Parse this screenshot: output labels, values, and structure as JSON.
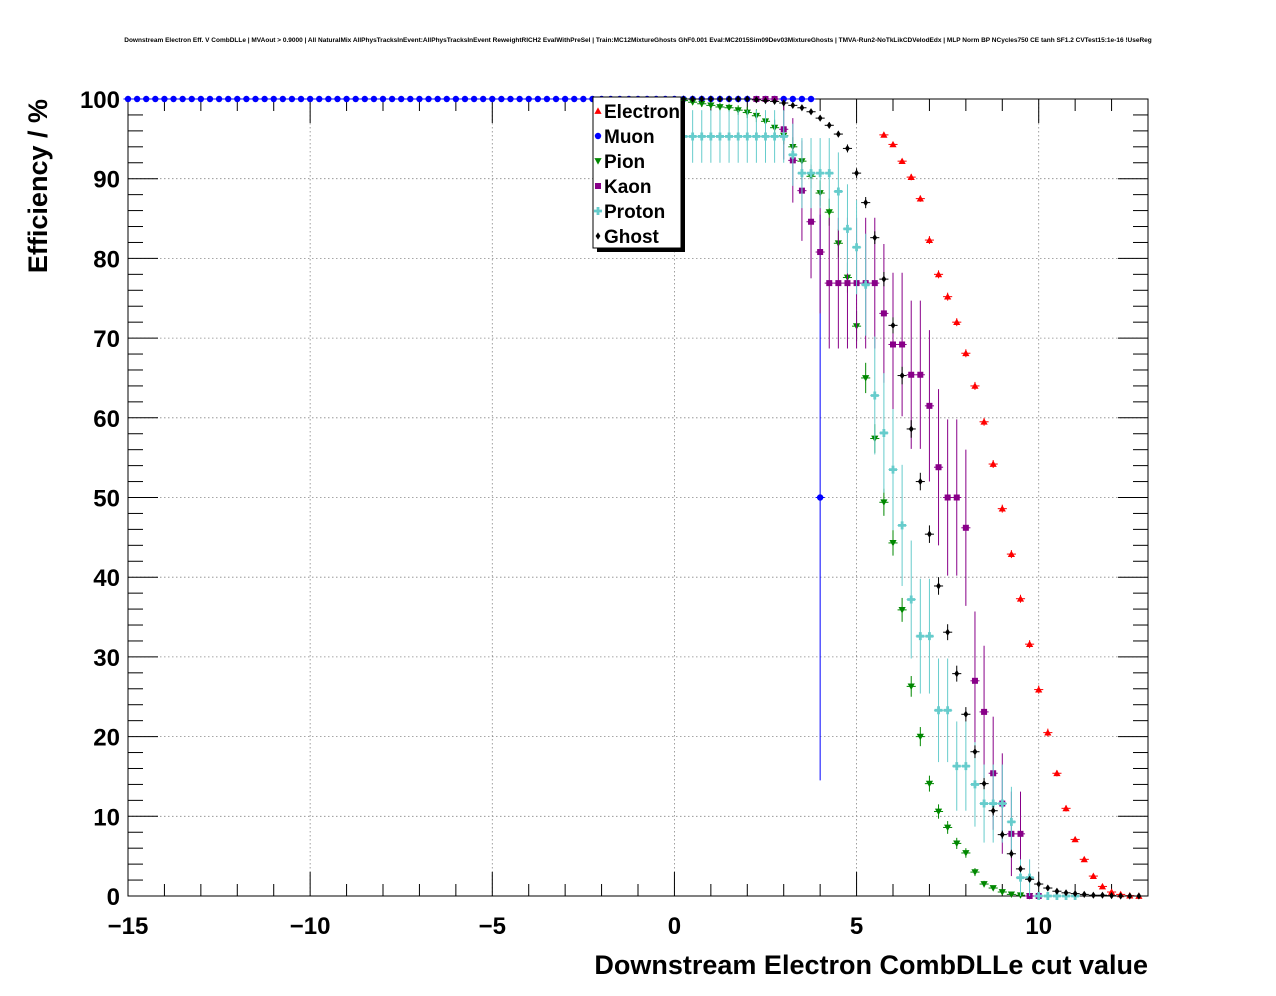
{
  "chart_data": {
    "type": "scatter",
    "title": "Downstream Electron Eff. V CombDLLe | MVAout > 0.9000 | All NaturalMix AllPhysTracksInEvent:AllPhysTracksInEvent ReweightRICH2 EvalWithPreSel | Train:MC12MixtureGhosts GhF0.001 Eval:MC2015Sim09Dev03MixtureGhosts | TMVA-Run2-NoTkLikCDVelodEdx | MLP Norm BP NCycles750 CE tanh SF1.2 CVTest15:1e-16 !UseReg",
    "xlabel": "Downstream Electron CombDLLe cut value",
    "ylabel": "Efficiency / %",
    "xlim": [
      -15,
      13
    ],
    "ylim": [
      0,
      100
    ],
    "xticks": [
      -15,
      -10,
      -5,
      0,
      5,
      10
    ],
    "xtick_labels": [
      "−15",
      "−10",
      "−5",
      "0",
      "5",
      "10"
    ],
    "yticks": [
      0,
      10,
      20,
      30,
      40,
      50,
      60,
      70,
      80,
      90,
      100
    ],
    "yticks_labels": [
      "0",
      "10",
      "20",
      "30",
      "40",
      "50",
      "60",
      "70",
      "80",
      "90",
      "100"
    ],
    "grid": true,
    "legend_position": "top-center",
    "series": [
      {
        "name": "Electron",
        "color": "#ff0000",
        "marker": "triangle-up",
        "x": [
          5.75,
          6.0,
          6.25,
          6.5,
          6.75,
          7.0,
          7.25,
          7.5,
          7.75,
          8.0,
          8.25,
          8.5,
          8.75,
          9.0,
          9.25,
          9.5,
          9.75,
          10.0,
          10.25,
          10.5,
          10.75,
          11.0,
          11.25,
          11.5,
          11.75,
          12.0,
          12.25,
          12.5,
          12.75
        ],
        "y": [
          95.5,
          94.3,
          92.2,
          90.2,
          87.5,
          82.3,
          78.0,
          75.2,
          72.0,
          68.1,
          64.0,
          59.5,
          54.2,
          48.6,
          42.9,
          37.3,
          31.6,
          25.9,
          20.5,
          15.4,
          11.0,
          7.1,
          4.6,
          2.5,
          1.2,
          0.5,
          0.2,
          0.05,
          0.0
        ],
        "err": [
          0.3,
          0.3,
          0.3,
          0.4,
          0.4,
          0.5,
          0.5,
          0.5,
          0.5,
          0.5,
          0.5,
          0.5,
          0.5,
          0.5,
          0.5,
          0.5,
          0.5,
          0.5,
          0.5,
          0.4,
          0.4,
          0.3,
          0.3,
          0.2,
          0.2,
          0.1,
          0.1,
          0.05,
          0.0
        ]
      },
      {
        "name": "Muon",
        "color": "#0000ff",
        "marker": "circle",
        "x": [
          -15.0,
          -14.75,
          -14.5,
          -14.25,
          -14.0,
          -13.75,
          -13.5,
          -13.25,
          -13.0,
          -12.75,
          -12.5,
          -12.25,
          -12.0,
          -11.75,
          -11.5,
          -11.25,
          -11.0,
          -10.75,
          -10.5,
          -10.25,
          -10.0,
          -9.75,
          -9.5,
          -9.25,
          -9.0,
          -8.75,
          -8.5,
          -8.25,
          -8.0,
          -7.75,
          -7.5,
          -7.25,
          -7.0,
          -6.75,
          -6.5,
          -6.25,
          -6.0,
          -5.75,
          -5.5,
          -5.25,
          -5.0,
          -4.75,
          -4.5,
          -4.25,
          -4.0,
          -3.75,
          -3.5,
          -3.25,
          -3.0,
          -2.75,
          -2.5,
          -2.25,
          -2.0,
          -1.75,
          -1.5,
          -1.25,
          -1.0,
          -0.75,
          -0.5,
          -0.25,
          0.0,
          0.25,
          0.5,
          0.75,
          1.0,
          1.25,
          1.5,
          1.75,
          2.0,
          2.25,
          2.5,
          2.75,
          3.0,
          3.25,
          3.5,
          3.75,
          4.0
        ],
        "y": [
          100,
          100,
          100,
          100,
          100,
          100,
          100,
          100,
          100,
          100,
          100,
          100,
          100,
          100,
          100,
          100,
          100,
          100,
          100,
          100,
          100,
          100,
          100,
          100,
          100,
          100,
          100,
          100,
          100,
          100,
          100,
          100,
          100,
          100,
          100,
          100,
          100,
          100,
          100,
          100,
          100,
          100,
          100,
          100,
          100,
          100,
          100,
          100,
          100,
          100,
          100,
          100,
          100,
          100,
          100,
          100,
          100,
          100,
          100,
          100,
          100,
          100,
          100,
          100,
          100,
          100,
          100,
          100,
          100,
          100,
          100,
          100,
          100,
          100,
          100,
          100,
          50
        ],
        "err": [
          0,
          0,
          0,
          0,
          0,
          0,
          0,
          0,
          0,
          0,
          0,
          0,
          0,
          0,
          0,
          0,
          0,
          0,
          0,
          0,
          0,
          0,
          0,
          0,
          0,
          0,
          0,
          0,
          0,
          0,
          0,
          0,
          0,
          0,
          0,
          0,
          0,
          0,
          0,
          0,
          0,
          0,
          0,
          0,
          0,
          0,
          0,
          0,
          0,
          0,
          0,
          0,
          0,
          0,
          0,
          0,
          0,
          0,
          0,
          0,
          0,
          0,
          0,
          0,
          0,
          0,
          0,
          0,
          0,
          0,
          0,
          0,
          0,
          0,
          0,
          0,
          35.5
        ]
      },
      {
        "name": "Pion",
        "color": "#008800",
        "marker": "triangle-down",
        "x": [
          0.25,
          0.5,
          0.75,
          1.0,
          1.25,
          1.5,
          1.75,
          2.0,
          2.25,
          2.5,
          2.75,
          3.0,
          3.25,
          3.5,
          3.75,
          4.0,
          4.25,
          4.5,
          4.75,
          5.0,
          5.25,
          5.5,
          5.75,
          6.0,
          6.25,
          6.5,
          6.75,
          7.0,
          7.25,
          7.5,
          7.75,
          8.0,
          8.25,
          8.5,
          8.75,
          9.0,
          9.25,
          9.5,
          9.75
        ],
        "y": [
          99.8,
          99.6,
          99.4,
          99.2,
          99.0,
          98.9,
          98.6,
          98.3,
          97.9,
          97.2,
          96.4,
          95.4,
          94.0,
          92.2,
          90.3,
          88.2,
          85.8,
          81.9,
          77.6,
          71.5,
          65.0,
          57.4,
          49.4,
          44.3,
          35.9,
          26.3,
          20.0,
          14.1,
          10.6,
          8.6,
          6.6,
          5.4,
          3.0,
          1.5,
          1.0,
          0.5,
          0.2,
          0.1,
          0.0
        ],
        "err": [
          0.2,
          0.3,
          0.4,
          0.4,
          0.5,
          0.5,
          0.6,
          0.7,
          0.8,
          0.9,
          1.0,
          1.1,
          1.2,
          1.4,
          1.5,
          1.6,
          1.7,
          1.8,
          1.9,
          1.9,
          1.9,
          1.8,
          1.7,
          1.6,
          1.5,
          1.3,
          1.2,
          1.0,
          0.9,
          0.8,
          0.7,
          0.6,
          0.5,
          0.4,
          0.3,
          0.3,
          0.2,
          0.1,
          0.0
        ]
      },
      {
        "name": "Kaon",
        "color": "#880088",
        "marker": "square",
        "x": [
          2.25,
          2.5,
          2.75,
          3.0,
          3.25,
          3.5,
          3.75,
          4.0,
          4.25,
          4.5,
          4.75,
          5.0,
          5.25,
          5.5,
          5.75,
          6.0,
          6.25,
          6.5,
          6.75,
          7.0,
          7.25,
          7.5,
          7.75,
          8.0,
          8.25,
          8.5,
          8.75,
          9.0,
          9.25,
          9.5,
          9.75,
          10.0
        ],
        "y": [
          100,
          100,
          100,
          96.2,
          92.3,
          88.5,
          84.6,
          80.8,
          76.9,
          76.9,
          76.9,
          76.9,
          76.9,
          76.9,
          73.1,
          69.2,
          69.2,
          65.4,
          65.4,
          61.5,
          53.8,
          50.0,
          50.0,
          46.2,
          27.0,
          23.1,
          15.4,
          11.6,
          7.8,
          7.8,
          0.0,
          0.0
        ],
        "err": [
          0,
          0,
          0,
          3.8,
          5.3,
          6.3,
          7.1,
          7.7,
          8.2,
          8.2,
          8.2,
          8.2,
          8.2,
          8.2,
          8.7,
          9.0,
          9.0,
          9.3,
          9.3,
          9.5,
          9.8,
          9.8,
          9.8,
          9.8,
          8.7,
          8.3,
          7.1,
          6.3,
          5.3,
          5.3,
          0,
          0
        ]
      },
      {
        "name": "Proton",
        "color": "#66cccc",
        "marker": "cross",
        "x": [
          0.25,
          0.5,
          0.75,
          1.0,
          1.25,
          1.5,
          1.75,
          2.0,
          2.25,
          2.5,
          2.75,
          3.0,
          3.25,
          3.5,
          3.75,
          4.0,
          4.25,
          4.5,
          4.75,
          5.0,
          5.25,
          5.5,
          5.75,
          6.0,
          6.25,
          6.5,
          6.75,
          7.0,
          7.25,
          7.5,
          7.75,
          8.0,
          8.25,
          8.5,
          8.75,
          9.0,
          9.25,
          9.5,
          9.75,
          10.0,
          10.25,
          10.5,
          10.75,
          11.0
        ],
        "y": [
          95.3,
          95.3,
          95.3,
          95.3,
          95.3,
          95.3,
          95.3,
          95.3,
          95.3,
          95.3,
          95.3,
          95.3,
          93.0,
          90.7,
          90.7,
          90.7,
          90.7,
          88.4,
          83.7,
          81.4,
          76.7,
          62.8,
          58.1,
          53.5,
          46.5,
          37.2,
          32.6,
          32.6,
          23.3,
          23.3,
          16.3,
          16.3,
          14.0,
          11.6,
          11.6,
          11.6,
          9.3,
          2.3,
          2.3,
          0.0,
          0.0,
          0.0,
          0.0,
          0.0
        ],
        "err": [
          3.3,
          3.3,
          3.3,
          3.3,
          3.3,
          3.3,
          3.3,
          3.3,
          3.3,
          3.3,
          3.3,
          3.3,
          3.9,
          4.4,
          4.4,
          4.4,
          4.4,
          4.9,
          5.6,
          5.9,
          6.4,
          7.4,
          7.5,
          7.6,
          7.6,
          7.4,
          7.2,
          7.2,
          6.5,
          6.5,
          5.6,
          5.6,
          5.3,
          4.9,
          4.9,
          4.9,
          4.4,
          2.3,
          2.3,
          0,
          0,
          0,
          0,
          0
        ]
      },
      {
        "name": "Ghost",
        "color": "#000000",
        "marker": "diamond",
        "x": [
          0.25,
          0.5,
          0.75,
          1.0,
          1.25,
          1.5,
          1.75,
          2.0,
          2.25,
          2.5,
          2.75,
          3.0,
          3.25,
          3.5,
          3.75,
          4.0,
          4.25,
          4.5,
          4.75,
          5.0,
          5.25,
          5.5,
          5.75,
          6.0,
          6.25,
          6.5,
          6.75,
          7.0,
          7.25,
          7.5,
          7.75,
          8.0,
          8.25,
          8.5,
          8.75,
          9.0,
          9.25,
          9.5,
          9.75,
          10.0,
          10.25,
          10.5,
          10.75,
          11.0,
          11.25,
          11.5,
          11.75,
          12.0,
          12.25,
          12.5,
          12.75
        ],
        "y": [
          100,
          100,
          100,
          100,
          100,
          100,
          100,
          100,
          99.9,
          99.8,
          99.7,
          99.5,
          99.2,
          98.9,
          98.4,
          97.6,
          96.7,
          95.6,
          93.8,
          90.7,
          87.0,
          82.6,
          77.4,
          71.6,
          65.3,
          58.6,
          52.0,
          45.4,
          38.9,
          33.1,
          27.9,
          22.8,
          18.1,
          14.1,
          10.7,
          7.7,
          5.3,
          3.4,
          2.1,
          1.5,
          1.0,
          0.6,
          0.4,
          0.3,
          0.2,
          0.1,
          0.1,
          0.05,
          0.0,
          0.0,
          0.0
        ],
        "err": [
          0,
          0,
          0,
          0,
          0,
          0,
          0,
          0,
          0.1,
          0.1,
          0.1,
          0.2,
          0.2,
          0.2,
          0.3,
          0.3,
          0.4,
          0.4,
          0.5,
          0.6,
          0.7,
          0.8,
          0.9,
          1.0,
          1.1,
          1.1,
          1.1,
          1.1,
          1.1,
          1.0,
          1.0,
          0.9,
          0.8,
          0.7,
          0.6,
          0.5,
          0.5,
          0.4,
          0.3,
          0.3,
          0.2,
          0.2,
          0.1,
          0.1,
          0.1,
          0.1,
          0.1,
          0.05,
          0,
          0,
          0
        ]
      }
    ]
  }
}
